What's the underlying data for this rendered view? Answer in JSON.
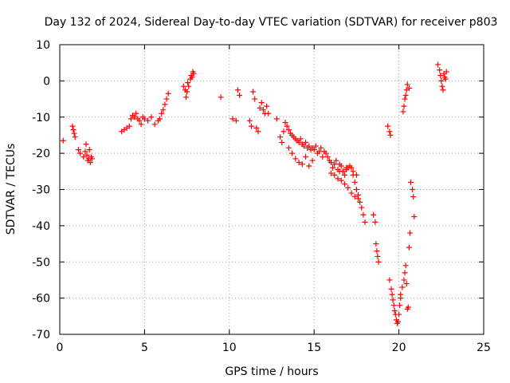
{
  "chart_data": {
    "type": "scatter",
    "title": "Day 132 of 2024, Sidereal Day-to-day VTEC variation (SDTVAR) for receiver p803",
    "xlabel": "GPS time / hours",
    "ylabel": "SDTVAR / TECUs",
    "xlim": [
      0,
      25
    ],
    "ylim": [
      -70,
      10
    ],
    "xticks": [
      0,
      5,
      10,
      15,
      20,
      25
    ],
    "yticks": [
      10,
      0,
      -10,
      -20,
      -30,
      -40,
      -50,
      -60,
      -70
    ],
    "grid": true,
    "marker": "+",
    "color": "#ff0000",
    "series": [
      {
        "name": "SDTVAR",
        "x": [
          0.2,
          0.75,
          0.8,
          0.85,
          0.9,
          1.1,
          1.2,
          1.4,
          1.5,
          1.55,
          1.6,
          1.65,
          1.7,
          1.75,
          1.8,
          1.85,
          1.9,
          3.65,
          3.8,
          3.95,
          4.1,
          4.2,
          4.3,
          4.4,
          4.5,
          4.6,
          4.7,
          4.8,
          4.9,
          5.0,
          5.2,
          5.4,
          5.6,
          5.8,
          5.9,
          6.0,
          6.1,
          6.2,
          6.3,
          6.4,
          7.3,
          7.4,
          7.45,
          7.5,
          7.55,
          7.6,
          7.7,
          7.75,
          7.8,
          7.85,
          7.9,
          9.5,
          10.2,
          10.4,
          10.5,
          10.6,
          11.2,
          11.3,
          11.4,
          11.5,
          11.6,
          11.7,
          11.8,
          11.9,
          12.0,
          12.1,
          12.2,
          12.3,
          12.8,
          13.0,
          13.1,
          13.2,
          13.3,
          13.4,
          13.5,
          13.6,
          13.7,
          13.8,
          13.9,
          14.0,
          14.1,
          14.2,
          14.3,
          14.4,
          14.5,
          14.6,
          14.7,
          14.8,
          14.9,
          15.0,
          13.5,
          13.7,
          13.9,
          14.1,
          14.3,
          14.5,
          14.7,
          14.9,
          15.1,
          15.2,
          15.3,
          15.4,
          15.5,
          15.6,
          15.7,
          15.8,
          15.9,
          16.0,
          16.1,
          16.2,
          16.3,
          16.4,
          16.5,
          16.6,
          16.7,
          16.8,
          16.9,
          17.0,
          16.0,
          16.2,
          16.4,
          16.6,
          16.8,
          17.0,
          17.2,
          17.4,
          17.6,
          17.2,
          17.3,
          17.4,
          17.5,
          17.6,
          17.7,
          17.8,
          17.9,
          18.0,
          16.5,
          16.7,
          16.9,
          17.1,
          17.3,
          17.5,
          18.5,
          18.6,
          18.65,
          18.7,
          18.75,
          18.8,
          19.35,
          19.45,
          19.5,
          19.45,
          19.55,
          19.6,
          19.65,
          19.7,
          19.75,
          19.8,
          19.85,
          19.9,
          19.95,
          20.0,
          20.05,
          20.1,
          20.1,
          20.2,
          20.3,
          20.35,
          20.4,
          20.45,
          20.5,
          20.55,
          20.6,
          20.65,
          20.25,
          20.3,
          20.35,
          20.4,
          20.45,
          20.5,
          20.6,
          20.7,
          20.8,
          20.85,
          20.9,
          22.3,
          22.4,
          22.45,
          22.5,
          22.55,
          22.6,
          22.65,
          22.7,
          22.75,
          22.8
        ],
        "y": [
          -16.5,
          -12.5,
          -13.5,
          -14.5,
          -15.5,
          -19,
          -20,
          -21,
          -19.5,
          -17.5,
          -20.5,
          -22,
          -21.5,
          -19,
          -22.5,
          -21,
          -21.5,
          -14,
          -13.5,
          -13,
          -12.5,
          -10.5,
          -9.5,
          -10,
          -9,
          -10.5,
          -11,
          -12,
          -10,
          -10.5,
          -11,
          -10,
          -12,
          -11,
          -10.5,
          -9,
          -8,
          -6.5,
          -5,
          -3.5,
          -1.5,
          -2.5,
          -4.5,
          -3,
          -0.5,
          -1.5,
          0.5,
          1.5,
          1,
          2.5,
          2,
          -4.5,
          -10.5,
          -11,
          -2.5,
          -4,
          -11,
          -12.5,
          -3,
          -5,
          -13,
          -14,
          -7.5,
          -6,
          -8,
          -9,
          -7,
          -9,
          -10.5,
          -15.5,
          -17,
          -14,
          -11.5,
          -12.5,
          -13.5,
          -14.5,
          -15,
          -15.5,
          -16,
          -16.5,
          -17,
          -16,
          -17.5,
          -18,
          -17,
          -18.5,
          -18,
          -19,
          -18.5,
          -19,
          -18.5,
          -20,
          -21.5,
          -22.5,
          -23,
          -21,
          -23.5,
          -22,
          -18,
          -20,
          -19.5,
          -18.5,
          -21,
          -19.5,
          -20,
          -21,
          -22,
          -22.5,
          -24,
          -23,
          -22,
          -24.5,
          -25,
          -23.5,
          -25,
          -26,
          -24.5,
          -24,
          -25.5,
          -26,
          -27,
          -27.5,
          -28.5,
          -29.5,
          -31,
          -32,
          -32.5,
          -24,
          -26,
          -28,
          -30,
          -31.5,
          -33.5,
          -35,
          -37,
          -39,
          -23,
          -25,
          -24,
          -23.5,
          -25,
          -26,
          -37,
          -39,
          -45,
          -47,
          -48.5,
          -50,
          -12.5,
          -14,
          -15,
          -55,
          -57.5,
          -59,
          -60.5,
          -62,
          -63.5,
          -64.5,
          -66,
          -67,
          -66.5,
          -64.5,
          -62,
          -60,
          -59,
          -57,
          -55,
          -53,
          -51,
          -56,
          -63,
          -62.5,
          -46,
          -42,
          -8.5,
          -7,
          -5,
          -4,
          -2.5,
          -1,
          -2,
          -28,
          -30,
          -32,
          -37.5,
          4.5,
          3,
          1.5,
          0,
          -1.5,
          -2.5,
          2,
          1,
          0.5,
          2.5
        ]
      }
    ]
  }
}
